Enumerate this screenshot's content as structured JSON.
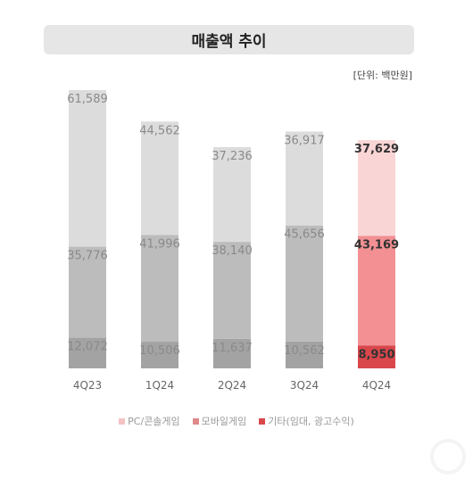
{
  "title": "매출액 추이",
  "unit": "[단위: 백만원]",
  "legend": [
    {
      "label": "PC/콘솔게임",
      "color": "#f5c2c4"
    },
    {
      "label": "모바일게임",
      "color": "#e0898b"
    },
    {
      "label": "기타(임대, 광고수익)",
      "color": "#d9474b"
    }
  ],
  "chart_data": {
    "type": "bar",
    "stacked": true,
    "categories": [
      "4Q23",
      "1Q24",
      "2Q24",
      "3Q24",
      "4Q24"
    ],
    "series": [
      {
        "name": "기타(임대, 광고수익)",
        "values": [
          12072,
          10506,
          11637,
          10562,
          8950
        ]
      },
      {
        "name": "모바일게임",
        "values": [
          35776,
          41996,
          38140,
          45656,
          43169
        ]
      },
      {
        "name": "PC/콘솔게임",
        "values": [
          61589,
          44562,
          37236,
          36917,
          37629
        ]
      }
    ],
    "value_labels": [
      [
        "12,072",
        "10,506",
        "11,637",
        "10,562",
        "8,950"
      ],
      [
        "35,776",
        "41,996",
        "38,140",
        "45,656",
        "43,169"
      ],
      [
        "61,589",
        "44,562",
        "37,236",
        "36,917",
        "37,629"
      ]
    ],
    "colors_default": [
      "#a3a3a3",
      "#bcbcbc",
      "#dcdcdc"
    ],
    "colors_highlight": [
      "#d9474b",
      "#f29093",
      "#fad5d6"
    ],
    "highlight_category": "4Q24",
    "label_color_default": "#8a8a8a",
    "label_color_highlight": "#333333"
  }
}
